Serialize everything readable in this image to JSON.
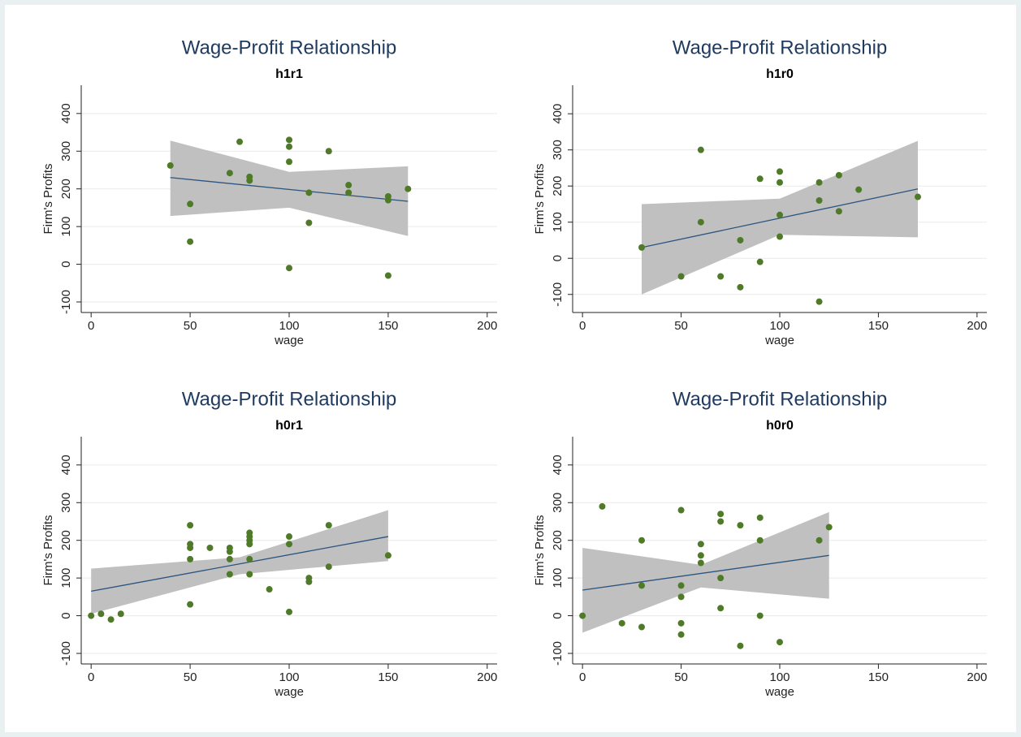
{
  "chart_data": [
    {
      "type": "scatter",
      "title": "Wage-Profit Relationship",
      "subtitle": "h1r1",
      "x_label": "wage",
      "y_label": "Firm's Profits",
      "xlim": [
        -5,
        205
      ],
      "ylim": [
        -128,
        475
      ],
      "xticks": [
        0,
        50,
        100,
        150,
        200
      ],
      "yticks": [
        -100,
        0,
        100,
        200,
        300,
        400
      ],
      "grid": true,
      "series": [
        {
          "color": "#4f7a28",
          "x": [
            40,
            50,
            50,
            70,
            75,
            80,
            80,
            100,
            100,
            100,
            100,
            110,
            110,
            120,
            130,
            130,
            150,
            150,
            150,
            160
          ],
          "values": [
            262,
            160,
            60,
            242,
            325,
            232,
            222,
            330,
            312,
            272,
            -10,
            190,
            110,
            300,
            210,
            190,
            180,
            170,
            -30,
            200
          ]
        }
      ],
      "fit": {
        "color": "#2b5480",
        "x": [
          40,
          160
        ],
        "values": [
          230,
          167
        ]
      },
      "ci": {
        "color": "#c0c0c0",
        "x": [
          40,
          100,
          160
        ],
        "upper": [
          328,
          245,
          260
        ],
        "lower": [
          128,
          150,
          75
        ]
      }
    },
    {
      "type": "scatter",
      "title": "Wage-Profit Relationship",
      "subtitle": "h1r0",
      "x_label": "wage",
      "y_label": "Firm's Profits",
      "xlim": [
        -5,
        205
      ],
      "ylim": [
        -150,
        479
      ],
      "xticks": [
        0,
        50,
        100,
        150,
        200
      ],
      "yticks": [
        -100,
        0,
        100,
        200,
        300,
        400
      ],
      "grid": true,
      "series": [
        {
          "color": "#4f7a28",
          "x": [
            30,
            50,
            60,
            60,
            70,
            80,
            80,
            90,
            90,
            100,
            100,
            100,
            100,
            120,
            120,
            120,
            130,
            130,
            140,
            170
          ],
          "values": [
            30,
            -50,
            300,
            100,
            -50,
            50,
            -80,
            220,
            -10,
            240,
            210,
            120,
            60,
            210,
            160,
            -120,
            230,
            130,
            190,
            170
          ]
        }
      ],
      "fit": {
        "color": "#2b5480",
        "x": [
          30,
          170
        ],
        "values": [
          30,
          192
        ]
      },
      "ci": {
        "color": "#c0c0c0",
        "x": [
          30,
          100,
          170
        ],
        "upper": [
          150,
          165,
          325
        ],
        "lower": [
          -100,
          65,
          58
        ]
      }
    },
    {
      "type": "scatter",
      "title": "Wage-Profit Relationship",
      "subtitle": "h0r1",
      "x_label": "wage",
      "y_label": "Firm's Profits",
      "xlim": [
        -5,
        205
      ],
      "ylim": [
        -128,
        475
      ],
      "xticks": [
        0,
        50,
        100,
        150,
        200
      ],
      "yticks": [
        -100,
        0,
        100,
        200,
        300,
        400
      ],
      "grid": true,
      "series": [
        {
          "color": "#4f7a28",
          "x": [
            0,
            5,
            10,
            15,
            50,
            50,
            50,
            50,
            50,
            60,
            70,
            70,
            70,
            70,
            80,
            80,
            80,
            80,
            80,
            80,
            90,
            100,
            100,
            100,
            110,
            110,
            120,
            120,
            150
          ],
          "values": [
            0,
            5,
            -10,
            5,
            240,
            190,
            180,
            150,
            30,
            180,
            180,
            170,
            150,
            110,
            220,
            210,
            200,
            190,
            150,
            110,
            70,
            210,
            190,
            10,
            100,
            90,
            240,
            130,
            160
          ]
        }
      ],
      "fit": {
        "color": "#2b5480",
        "x": [
          0,
          150
        ],
        "values": [
          65,
          210
        ]
      },
      "ci": {
        "color": "#c0c0c0",
        "x": [
          0,
          75,
          150
        ],
        "upper": [
          125,
          155,
          280
        ],
        "lower": [
          5,
          110,
          145
        ]
      }
    },
    {
      "type": "scatter",
      "title": "Wage-Profit Relationship",
      "subtitle": "h0r0",
      "x_label": "wage",
      "y_label": "Firm's Profits",
      "xlim": [
        -5,
        205
      ],
      "ylim": [
        -128,
        475
      ],
      "xticks": [
        0,
        50,
        100,
        150,
        200
      ],
      "yticks": [
        -100,
        0,
        100,
        200,
        300,
        400
      ],
      "grid": true,
      "series": [
        {
          "color": "#4f7a28",
          "x": [
            0,
            10,
            20,
            30,
            30,
            30,
            50,
            50,
            50,
            50,
            50,
            60,
            60,
            60,
            70,
            70,
            70,
            70,
            80,
            80,
            90,
            90,
            90,
            100,
            120,
            125
          ],
          "values": [
            0,
            290,
            -20,
            200,
            80,
            -30,
            280,
            80,
            50,
            -20,
            -50,
            190,
            160,
            140,
            270,
            250,
            100,
            20,
            240,
            -80,
            260,
            200,
            0,
            -70,
            200,
            235
          ]
        }
      ],
      "fit": {
        "color": "#2b5480",
        "x": [
          0,
          125
        ],
        "values": [
          68,
          160
        ]
      },
      "ci": {
        "color": "#c0c0c0",
        "x": [
          0,
          60,
          125
        ],
        "upper": [
          180,
          135,
          275
        ],
        "lower": [
          -45,
          75,
          45
        ]
      }
    }
  ]
}
